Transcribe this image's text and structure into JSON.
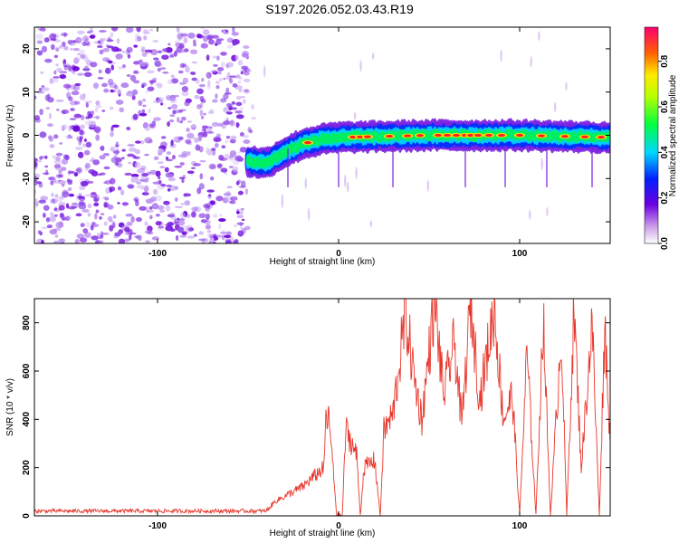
{
  "title": "S197.2026.052.03.43.R19",
  "chart_data": [
    {
      "type": "heatmap",
      "xlabel": "Height of straight line (km)",
      "ylabel": "Frequency (Hz)",
      "xlim": [
        -168,
        150
      ],
      "ylim": [
        -25,
        25
      ],
      "xticks": [
        -100,
        0,
        100
      ],
      "yticks": [
        -20,
        -10,
        0,
        10,
        20
      ],
      "colorbar": {
        "label": "Normalized spectral amplitude",
        "range": [
          0,
          0.95
        ],
        "ticks": [
          0.0,
          0.2,
          0.4,
          0.6,
          0.8
        ],
        "colormap": "rainbow"
      },
      "description_features": {
        "noise_region_x": [
          -168,
          -50
        ],
        "ridge": [
          {
            "x": -50,
            "y": -6
          },
          {
            "x": -40,
            "y": -6.5
          },
          {
            "x": -30,
            "y": -4
          },
          {
            "x": -20,
            "y": -2
          },
          {
            "x": -10,
            "y": -1
          },
          {
            "x": 0,
            "y": -0.5
          },
          {
            "x": 50,
            "y": 0
          },
          {
            "x": 100,
            "y": 0
          },
          {
            "x": 150,
            "y": -0.5
          }
        ]
      }
    },
    {
      "type": "line",
      "xlabel": "Height of straight line (km)",
      "ylabel": "SNR (10 * v/v)",
      "xlim": [
        -168,
        150
      ],
      "ylim": [
        0,
        900
      ],
      "xticks": [
        -100,
        0,
        100
      ],
      "yticks": [
        0,
        200,
        400,
        600,
        800
      ],
      "series_color": "#e8382d",
      "key_points": [
        {
          "x": -168,
          "y": 20
        },
        {
          "x": -40,
          "y": 20
        },
        {
          "x": -35,
          "y": 60
        },
        {
          "x": -20,
          "y": 120
        },
        {
          "x": -8,
          "y": 200
        },
        {
          "x": -7,
          "y": 420
        },
        {
          "x": -5,
          "y": 380
        },
        {
          "x": -1,
          "y": 0
        },
        {
          "x": 2,
          "y": 0
        },
        {
          "x": 4,
          "y": 360
        },
        {
          "x": 10,
          "y": 250
        },
        {
          "x": 12,
          "y": 0
        },
        {
          "x": 14,
          "y": 200
        },
        {
          "x": 20,
          "y": 230
        },
        {
          "x": 23,
          "y": 0
        },
        {
          "x": 25,
          "y": 350
        },
        {
          "x": 30,
          "y": 420
        },
        {
          "x": 37,
          "y": 840
        },
        {
          "x": 42,
          "y": 560
        },
        {
          "x": 46,
          "y": 400
        },
        {
          "x": 53,
          "y": 890
        },
        {
          "x": 58,
          "y": 500
        },
        {
          "x": 64,
          "y": 720
        },
        {
          "x": 68,
          "y": 380
        },
        {
          "x": 73,
          "y": 880
        },
        {
          "x": 78,
          "y": 480
        },
        {
          "x": 86,
          "y": 860
        },
        {
          "x": 91,
          "y": 400
        },
        {
          "x": 96,
          "y": 500
        },
        {
          "x": 100,
          "y": 0
        },
        {
          "x": 104,
          "y": 680
        },
        {
          "x": 109,
          "y": 0
        },
        {
          "x": 113,
          "y": 820
        },
        {
          "x": 117,
          "y": 0
        },
        {
          "x": 123,
          "y": 760
        },
        {
          "x": 126,
          "y": 0
        },
        {
          "x": 130,
          "y": 860
        },
        {
          "x": 134,
          "y": 200
        },
        {
          "x": 140,
          "y": 800
        },
        {
          "x": 144,
          "y": 0
        },
        {
          "x": 147,
          "y": 800
        },
        {
          "x": 150,
          "y": 300
        }
      ]
    }
  ]
}
